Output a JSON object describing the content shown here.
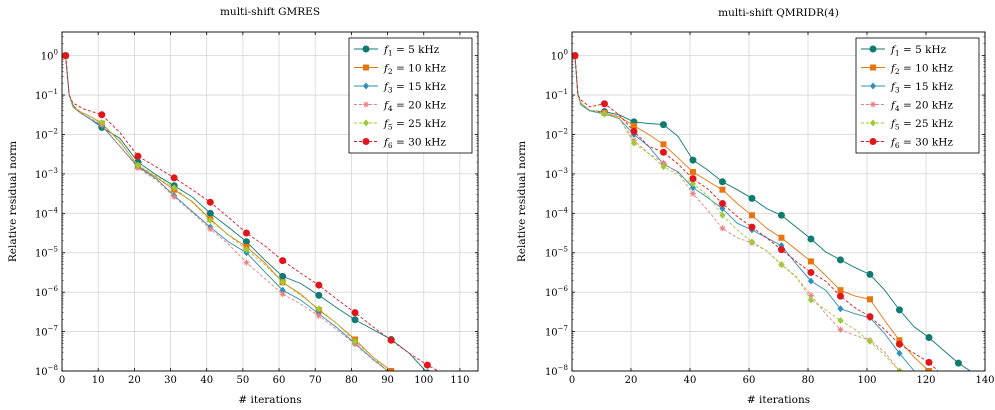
{
  "chart_data": [
    {
      "type": "line",
      "title": "multi-shift GMRES",
      "xlabel": "# iterations",
      "ylabel": "Relative residual norm",
      "xlim": [
        0,
        115
      ],
      "ylim_log10": [
        -8,
        0.6
      ],
      "xticks": [
        0,
        10,
        20,
        30,
        40,
        50,
        60,
        70,
        80,
        90,
        100,
        110
      ],
      "yticks_exp": [
        0,
        -1,
        -2,
        -3,
        -4,
        -5,
        -6,
        -7,
        -8
      ],
      "yscale": "log",
      "grid": true,
      "legend": "top-right",
      "series": [
        {
          "name": "f1 = 5 kHz",
          "color": "#0e7a70",
          "dash": "solid",
          "marker": "circle",
          "x": [
            1,
            2,
            3,
            5,
            8,
            11,
            16,
            21,
            26,
            31,
            36,
            41,
            46,
            51,
            56,
            61,
            66,
            71,
            76,
            81,
            86,
            91,
            96,
            101
          ],
          "y": [
            0,
            -1.0,
            -1.25,
            -1.45,
            -1.62,
            -1.82,
            -2.1,
            -2.7,
            -3.02,
            -3.3,
            -3.58,
            -4.0,
            -4.35,
            -4.72,
            -5.18,
            -5.6,
            -5.78,
            -6.08,
            -6.4,
            -6.7,
            -6.95,
            -7.2,
            -7.55,
            -8.05
          ]
        },
        {
          "name": "f2 = 10 kHz",
          "color": "#e8740c",
          "dash": "solid",
          "marker": "square",
          "x": [
            1,
            2,
            3,
            5,
            8,
            11,
            16,
            21,
            26,
            31,
            36,
            41,
            46,
            51,
            56,
            61,
            66,
            71,
            76,
            81,
            86,
            91
          ],
          "y": [
            0,
            -1.0,
            -1.28,
            -1.42,
            -1.55,
            -1.72,
            -2.18,
            -2.8,
            -3.08,
            -3.4,
            -3.7,
            -4.15,
            -4.55,
            -4.85,
            -5.25,
            -5.75,
            -6.05,
            -6.45,
            -6.8,
            -7.2,
            -7.65,
            -8.0
          ]
        },
        {
          "name": "f3 = 15 kHz",
          "color": "#2e8fb8",
          "dash": "solid",
          "marker": "diamond",
          "x": [
            1,
            2,
            3,
            5,
            8,
            11,
            16,
            21,
            26,
            31,
            36,
            41,
            46,
            51,
            56,
            61,
            66,
            71,
            76,
            81,
            86,
            90
          ],
          "y": [
            0,
            -1.0,
            -1.3,
            -1.45,
            -1.62,
            -1.78,
            -2.3,
            -2.82,
            -3.12,
            -3.55,
            -3.95,
            -4.35,
            -4.72,
            -5.0,
            -5.48,
            -5.95,
            -6.2,
            -6.55,
            -6.9,
            -7.3,
            -7.7,
            -8.0
          ]
        },
        {
          "name": "f4 = 20 kHz",
          "color": "#f08080",
          "dash": "dashed",
          "marker": "star",
          "x": [
            1,
            2,
            3,
            5,
            8,
            11,
            16,
            21,
            26,
            31,
            36,
            41,
            46,
            51,
            56,
            61,
            66,
            71,
            76,
            81,
            86,
            90
          ],
          "y": [
            0,
            -1.0,
            -1.3,
            -1.45,
            -1.6,
            -1.75,
            -2.3,
            -2.85,
            -3.15,
            -3.58,
            -3.98,
            -4.4,
            -4.78,
            -5.25,
            -5.65,
            -6.05,
            -6.3,
            -6.6,
            -6.95,
            -7.32,
            -7.72,
            -8.0
          ]
        },
        {
          "name": "f5 = 25 kHz",
          "color": "#9acd32",
          "dash": "dashed",
          "marker": "diamond",
          "x": [
            1,
            2,
            3,
            5,
            8,
            11,
            16,
            21,
            26,
            31,
            36,
            41,
            46,
            51,
            56,
            61,
            66,
            71,
            76,
            81,
            86,
            90
          ],
          "y": [
            0,
            -1.0,
            -1.28,
            -1.42,
            -1.55,
            -1.7,
            -2.2,
            -2.78,
            -3.05,
            -3.35,
            -3.72,
            -4.18,
            -4.55,
            -4.92,
            -5.3,
            -5.75,
            -6.08,
            -6.42,
            -6.8,
            -7.25,
            -7.65,
            -8.0
          ]
        },
        {
          "name": "f6 = 30 kHz",
          "color": "#e0161c",
          "dash": "dashed",
          "marker": "circle",
          "x": [
            1,
            2,
            3,
            6,
            11,
            16,
            21,
            26,
            31,
            36,
            41,
            46,
            51,
            56,
            61,
            66,
            71,
            76,
            81,
            86,
            91,
            96,
            101,
            104
          ],
          "y": [
            0,
            -1.0,
            -1.2,
            -1.35,
            -1.5,
            -1.95,
            -2.55,
            -2.82,
            -3.1,
            -3.4,
            -3.72,
            -4.1,
            -4.5,
            -4.82,
            -5.2,
            -5.52,
            -5.82,
            -6.18,
            -6.52,
            -6.88,
            -7.22,
            -7.55,
            -7.85,
            -8.0
          ]
        }
      ]
    },
    {
      "type": "line",
      "title": "multi-shift QMRIDR(4)",
      "xlabel": "# iterations",
      "ylabel": "Relative residual norm",
      "xlim": [
        0,
        140
      ],
      "ylim_log10": [
        -8,
        0.6
      ],
      "xticks": [
        0,
        20,
        40,
        60,
        80,
        100,
        120,
        140
      ],
      "yticks_exp": [
        0,
        -1,
        -2,
        -3,
        -4,
        -5,
        -6,
        -7,
        -8
      ],
      "yscale": "log",
      "grid": true,
      "legend": "top-right",
      "series": [
        {
          "name": "f1 = 5 kHz",
          "color": "#0e7a70",
          "dash": "solid",
          "marker": "circle",
          "x": [
            1,
            2,
            3,
            6,
            11,
            16,
            21,
            26,
            31,
            36,
            41,
            46,
            51,
            56,
            61,
            66,
            71,
            76,
            81,
            86,
            91,
            96,
            101,
            106,
            111,
            116,
            121,
            126,
            131,
            135
          ],
          "y": [
            0,
            -1.0,
            -1.2,
            -1.4,
            -1.42,
            -1.5,
            -1.68,
            -1.72,
            -1.75,
            -2.05,
            -2.65,
            -2.9,
            -3.2,
            -3.4,
            -3.62,
            -3.88,
            -4.05,
            -4.35,
            -4.65,
            -4.98,
            -5.18,
            -5.38,
            -5.55,
            -5.95,
            -6.45,
            -6.88,
            -7.15,
            -7.48,
            -7.8,
            -8.0
          ]
        },
        {
          "name": "f2 = 10 kHz",
          "color": "#e8740c",
          "dash": "solid",
          "marker": "square",
          "x": [
            1,
            2,
            3,
            6,
            11,
            16,
            21,
            26,
            31,
            36,
            41,
            46,
            51,
            56,
            61,
            66,
            71,
            76,
            81,
            86,
            91,
            96,
            101,
            106,
            111,
            116,
            121
          ],
          "y": [
            0,
            -1.0,
            -1.2,
            -1.4,
            -1.45,
            -1.55,
            -1.78,
            -2.0,
            -2.25,
            -2.6,
            -2.95,
            -3.18,
            -3.4,
            -3.75,
            -4.05,
            -4.38,
            -4.62,
            -4.92,
            -5.22,
            -5.58,
            -5.95,
            -6.1,
            -6.18,
            -6.72,
            -7.22,
            -7.65,
            -8.0
          ]
        },
        {
          "name": "f3 = 15 kHz",
          "color": "#2e8fb8",
          "dash": "solid",
          "marker": "diamond",
          "x": [
            1,
            2,
            3,
            6,
            11,
            16,
            21,
            26,
            31,
            36,
            41,
            46,
            51,
            56,
            61,
            66,
            71,
            76,
            81,
            86,
            91,
            96,
            101,
            106,
            111,
            116
          ],
          "y": [
            0,
            -1.0,
            -1.25,
            -1.4,
            -1.48,
            -1.6,
            -2.0,
            -2.3,
            -2.75,
            -2.95,
            -3.35,
            -3.6,
            -3.88,
            -4.25,
            -4.42,
            -4.62,
            -4.82,
            -5.28,
            -5.72,
            -5.95,
            -6.42,
            -6.55,
            -6.65,
            -7.05,
            -7.55,
            -8.0
          ]
        },
        {
          "name": "f4 = 20 kHz",
          "color": "#f08080",
          "dash": "dashed",
          "marker": "star",
          "x": [
            1,
            2,
            3,
            6,
            11,
            16,
            21,
            26,
            31,
            36,
            41,
            46,
            51,
            56,
            61,
            66,
            71,
            76,
            81,
            86,
            91,
            96,
            101,
            106,
            111
          ],
          "y": [
            0,
            -1.0,
            -1.22,
            -1.38,
            -1.45,
            -1.6,
            -2.15,
            -2.48,
            -2.72,
            -2.98,
            -3.5,
            -3.92,
            -4.38,
            -4.62,
            -4.75,
            -4.95,
            -5.3,
            -5.62,
            -6.08,
            -6.55,
            -6.95,
            -7.1,
            -7.22,
            -7.52,
            -8.0
          ]
        },
        {
          "name": "f5 = 25 kHz",
          "color": "#9acd32",
          "dash": "dashed",
          "marker": "diamond",
          "x": [
            1,
            2,
            3,
            6,
            11,
            16,
            21,
            26,
            31,
            36,
            41,
            46,
            51,
            56,
            61,
            66,
            71,
            76,
            81,
            86,
            91,
            96,
            101,
            106,
            111
          ],
          "y": [
            0,
            -1.0,
            -1.22,
            -1.38,
            -1.48,
            -1.58,
            -2.22,
            -2.48,
            -2.82,
            -3.02,
            -3.25,
            -3.55,
            -4.05,
            -4.42,
            -4.72,
            -4.95,
            -5.3,
            -5.6,
            -6.2,
            -6.45,
            -6.72,
            -6.95,
            -7.25,
            -7.6,
            -8.0
          ]
        },
        {
          "name": "f6 = 30 kHz",
          "color": "#e0161c",
          "dash": "dashed",
          "marker": "circle",
          "x": [
            1,
            2,
            3,
            6,
            11,
            16,
            21,
            26,
            31,
            36,
            41,
            46,
            51,
            56,
            61,
            66,
            71,
            76,
            81,
            86,
            91,
            96,
            101,
            106,
            111,
            116,
            121,
            124
          ],
          "y": [
            0,
            -1.0,
            -1.12,
            -1.3,
            -1.22,
            -1.5,
            -1.92,
            -2.3,
            -2.45,
            -2.75,
            -3.12,
            -3.38,
            -3.75,
            -4.08,
            -4.35,
            -4.62,
            -4.92,
            -5.22,
            -5.5,
            -5.72,
            -6.1,
            -6.4,
            -6.62,
            -6.95,
            -7.32,
            -7.55,
            -7.78,
            -8.0
          ]
        }
      ]
    }
  ]
}
